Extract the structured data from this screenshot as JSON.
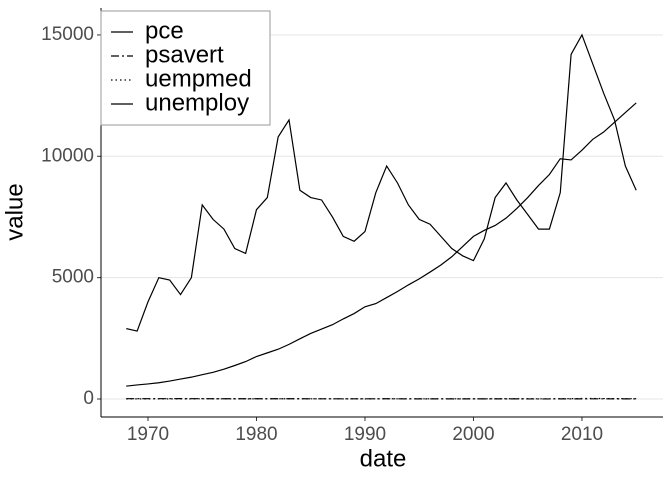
{
  "chart_data": {
    "type": "line",
    "xlabel": "date",
    "ylabel": "value",
    "x": [
      1968,
      1969,
      1970,
      1971,
      1972,
      1973,
      1974,
      1975,
      1976,
      1977,
      1978,
      1979,
      1980,
      1981,
      1982,
      1983,
      1984,
      1985,
      1986,
      1987,
      1988,
      1989,
      1990,
      1991,
      1992,
      1993,
      1994,
      1995,
      1996,
      1997,
      1998,
      1999,
      2000,
      2001,
      2002,
      2003,
      2004,
      2005,
      2006,
      2007,
      2008,
      2009,
      2010,
      2011,
      2012,
      2013,
      2014,
      2015
    ],
    "series": [
      {
        "name": "pce",
        "color": "#000000",
        "linetype": "solid",
        "values": [
          530,
          580,
          620,
          670,
          740,
          820,
          900,
          1000,
          1100,
          1230,
          1380,
          1540,
          1750,
          1900,
          2050,
          2250,
          2480,
          2700,
          2880,
          3060,
          3300,
          3520,
          3800,
          3930,
          4180,
          4430,
          4700,
          4950,
          5230,
          5520,
          5860,
          6280,
          6700,
          6950,
          7150,
          7450,
          7850,
          8300,
          8800,
          9250,
          9900,
          9850,
          10250,
          10700,
          11000,
          11400,
          11800,
          12200
        ]
      },
      {
        "name": "psavert",
        "color": "#000000",
        "linetype": "dashdot",
        "values": [
          12,
          12,
          13,
          13,
          12,
          14,
          13,
          13,
          11,
          10,
          10,
          10,
          10,
          11,
          11,
          9,
          10,
          8,
          8,
          7,
          8,
          8,
          8,
          8,
          9,
          7,
          6,
          6,
          6,
          5,
          6,
          4,
          4,
          4,
          5,
          5,
          5,
          3,
          3,
          3,
          5,
          6,
          6,
          7,
          8,
          5,
          5,
          5
        ]
      },
      {
        "name": "uempmed",
        "color": "#000000",
        "linetype": "dotted",
        "values": [
          5,
          4,
          5,
          6,
          6,
          5,
          5,
          8,
          8,
          7,
          6,
          5,
          7,
          7,
          8,
          10,
          8,
          7,
          7,
          7,
          6,
          6,
          5,
          7,
          9,
          8,
          8,
          8,
          8,
          8,
          7,
          6,
          6,
          7,
          9,
          10,
          9,
          9,
          8,
          8,
          9,
          15,
          21,
          21,
          18,
          17,
          13,
          12
        ]
      },
      {
        "name": "unemploy",
        "color": "#000000",
        "linetype": "solid",
        "values": [
          2900,
          2800,
          4000,
          5000,
          4900,
          4300,
          5000,
          8000,
          7400,
          7000,
          6200,
          6000,
          7800,
          8300,
          10800,
          11500,
          8600,
          8300,
          8200,
          7500,
          6700,
          6500,
          6900,
          8500,
          9600,
          8900,
          8000,
          7400,
          7200,
          6700,
          6200,
          5900,
          5700,
          6600,
          8300,
          8900,
          8200,
          7600,
          7000,
          7000,
          8500,
          14200,
          15000,
          13800,
          12600,
          11500,
          9600,
          8600
        ]
      }
    ],
    "xlim": [
      1965.67,
      2017.47
    ],
    "xticks": [
      1970,
      1980,
      1990,
      2000,
      2010
    ],
    "ylim": [
      -742,
      16110
    ],
    "yticks": [
      0,
      5000,
      10000,
      15000
    ],
    "grid": true,
    "legend": "top-left"
  }
}
